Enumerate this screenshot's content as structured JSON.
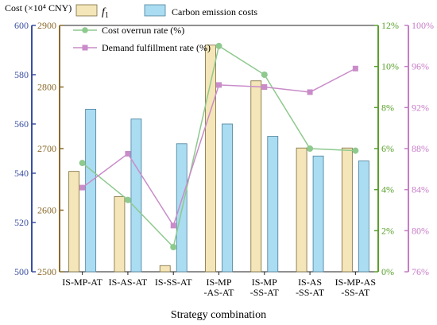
{
  "chart_data": {
    "type": "bar",
    "xlabel": "Strategy combination",
    "categories": [
      [
        "IS-MP-AT"
      ],
      [
        "IS-AS-AT"
      ],
      [
        "IS-SS-AT"
      ],
      [
        "IS-MP",
        "-AS-AT"
      ],
      [
        "IS-MP",
        "-SS-AT"
      ],
      [
        "IS-AS",
        "-SS-AT"
      ],
      [
        "IS-MP-AS",
        "-SS-AT"
      ]
    ],
    "y_axes": {
      "outer_left": {
        "label": "Cost (×10⁴ CNY)",
        "ylim": [
          500,
          600
        ],
        "ticks": [
          "500",
          "520",
          "540",
          "560",
          "580",
          "600"
        ],
        "color": "#3a4fa0"
      },
      "inner_left": {
        "ylim": [
          2500,
          2900
        ],
        "ticks": [
          "2500",
          "2600",
          "2700",
          "2800",
          "2900"
        ],
        "color": "#8b6a2b"
      },
      "inner_right": {
        "ylim": [
          0,
          12
        ],
        "ticks": [
          "0%",
          "2%",
          "4%",
          "6%",
          "8%",
          "10%",
          "12%"
        ],
        "color": "#5aa02c"
      },
      "outer_right": {
        "ylim": [
          76,
          100
        ],
        "ticks": [
          "76%",
          "80%",
          "84%",
          "88%",
          "92%",
          "96%",
          "100%"
        ],
        "color": "#c77cc7"
      }
    },
    "series": [
      {
        "name": "f1",
        "kind": "bar",
        "axis": "inner_left",
        "color": "#f4e6b8",
        "values": [
          2663,
          2622,
          2510,
          2868,
          2810,
          2701,
          2701
        ]
      },
      {
        "name": "Carbon emission costs",
        "kind": "bar",
        "axis": "outer_left",
        "color": "#aadcf2",
        "values": [
          566,
          562,
          552,
          560,
          555,
          547,
          545
        ]
      },
      {
        "name": "Cost overrun rate (%)",
        "kind": "line",
        "axis": "inner_right",
        "color": "#8ec98e",
        "values": [
          5.3,
          3.5,
          1.2,
          11.0,
          9.6,
          6.0,
          5.9
        ]
      },
      {
        "name": "Demand fulfillment rate (%)",
        "kind": "line",
        "axis": "outer_right",
        "color": "#c98cc9",
        "values": [
          84.2,
          87.5,
          80.5,
          94.2,
          94.0,
          93.5,
          95.8
        ]
      }
    ],
    "legend": {
      "position": "top-center",
      "f1_label": "f",
      "f1_sub": "1"
    }
  }
}
